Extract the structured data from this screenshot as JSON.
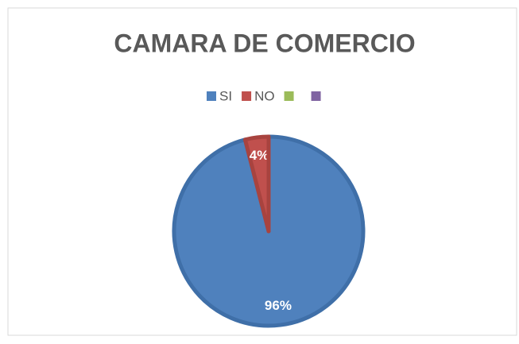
{
  "chart_data": {
    "type": "pie",
    "title": "CAMARA DE COMERCIO",
    "categories": [
      "SI",
      "NO",
      null,
      null
    ],
    "values": [
      96,
      4,
      0,
      0
    ],
    "value_labels": [
      "96%",
      "4%",
      null,
      null
    ],
    "colors": [
      "#4f81bd",
      "#c0504d",
      "#9bbb59",
      "#8064a2"
    ],
    "legend": "top"
  }
}
